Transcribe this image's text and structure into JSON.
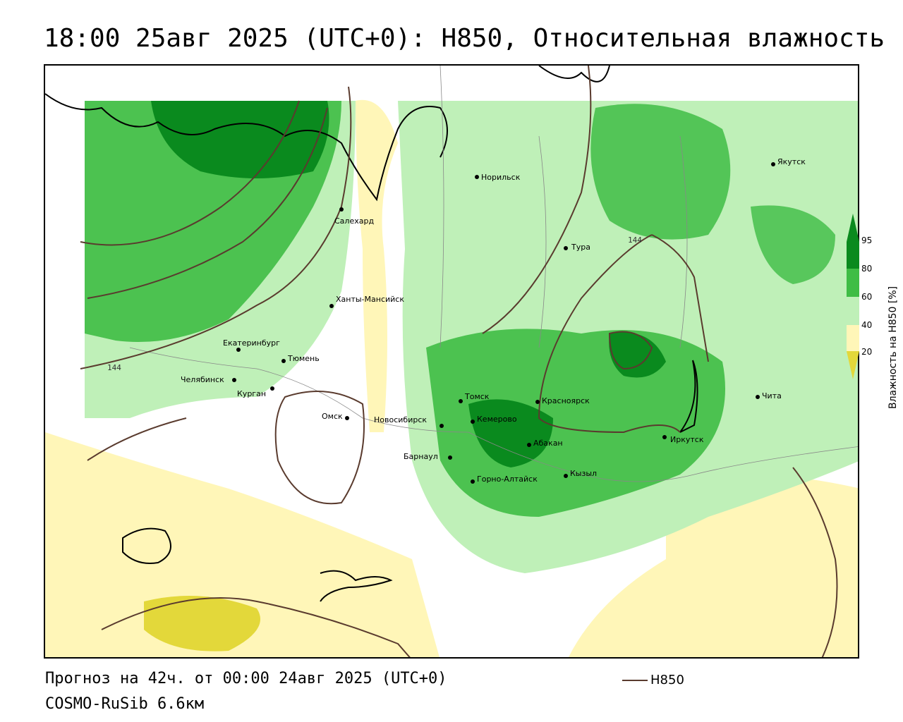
{
  "header": {
    "title": "18:00 25авг 2025 (UTC+0): H850, Относительная влажность"
  },
  "map": {
    "cities": [
      {
        "name": "Якутск"
      },
      {
        "name": "Норильск"
      },
      {
        "name": "Салехард"
      },
      {
        "name": "Тура"
      },
      {
        "name": "Ханты-Мансийск"
      },
      {
        "name": "Екатеринбург"
      },
      {
        "name": "Тюмень"
      },
      {
        "name": "Челябинск"
      },
      {
        "name": "Курган"
      },
      {
        "name": "Омск"
      },
      {
        "name": "Новосибирск"
      },
      {
        "name": "Томск"
      },
      {
        "name": "Кемерово"
      },
      {
        "name": "Красноярск"
      },
      {
        "name": "Абакан"
      },
      {
        "name": "Барнаул"
      },
      {
        "name": "Кызыл"
      },
      {
        "name": "Горно-Алтайск"
      },
      {
        "name": "Иркутск"
      },
      {
        "name": "Чита"
      }
    ],
    "contour_labels": [
      "144",
      "144"
    ],
    "colors": {
      "dark_green": "#0a8a1e",
      "mid_green": "#3fbd45",
      "light_green": "#bff0b8",
      "light_yellow": "#fff6b8",
      "mid_yellow": "#e3d83a",
      "contour": "#5a3b2e"
    }
  },
  "colorbar": {
    "ticks": [
      "95",
      "80",
      "60",
      "40",
      "20"
    ],
    "label": "Влажность на H850 [%]"
  },
  "footer": {
    "forecast": "Прогноз на 42ч. от 00:00 24авг 2025 (UTC+0)",
    "model": "COSMO-RuSib 6.6км"
  },
  "legend": {
    "label": "H850"
  }
}
